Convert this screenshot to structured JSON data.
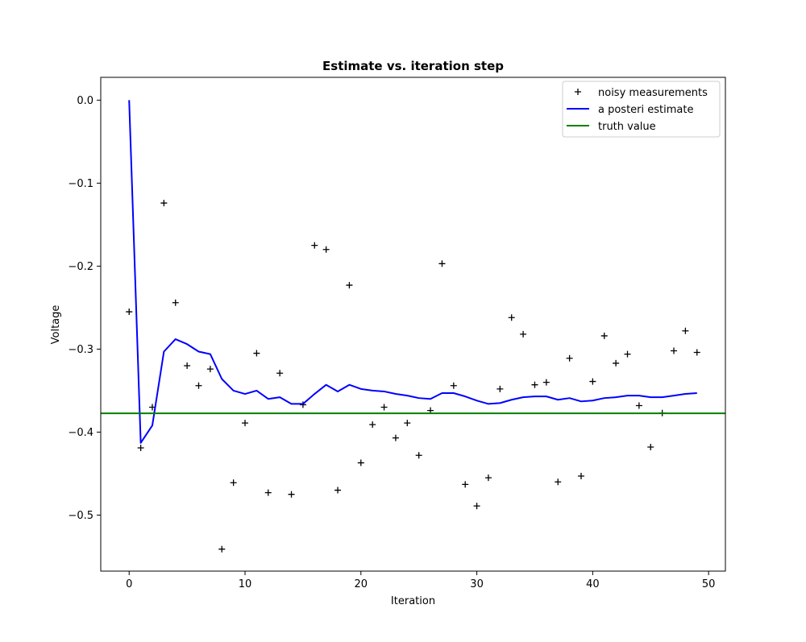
{
  "chart_data": {
    "type": "line",
    "title": "Estimate vs. iteration step",
    "xlabel": "Iteration",
    "ylabel": "Voltage",
    "xlim": [
      -2.45,
      51.45
    ],
    "ylim": [
      -0.5675,
      0.0275
    ],
    "xticks": [
      0,
      10,
      20,
      30,
      40,
      50
    ],
    "yticks": [
      0.0,
      -0.1,
      -0.2,
      -0.3,
      -0.4,
      -0.5
    ],
    "xtick_labels": [
      "0",
      "10",
      "20",
      "30",
      "40",
      "50"
    ],
    "ytick_labels": [
      "0.0",
      "−0.1",
      "−0.2",
      "−0.3",
      "−0.4",
      "−0.5"
    ],
    "grid": false,
    "legend_position": "top-right",
    "series": [
      {
        "name": "noisy measurements",
        "kind": "markers",
        "marker": "+",
        "color": "#000000",
        "x": [
          0,
          1,
          2,
          3,
          4,
          5,
          6,
          7,
          8,
          9,
          10,
          11,
          12,
          13,
          14,
          15,
          16,
          17,
          18,
          19,
          20,
          21,
          22,
          23,
          24,
          25,
          26,
          27,
          28,
          29,
          30,
          31,
          32,
          33,
          34,
          35,
          36,
          37,
          38,
          39,
          40,
          41,
          42,
          43,
          44,
          45,
          46,
          47,
          48,
          49
        ],
        "y": [
          -0.255,
          -0.419,
          -0.37,
          -0.124,
          -0.244,
          -0.32,
          -0.344,
          -0.324,
          -0.541,
          -0.461,
          -0.389,
          -0.305,
          -0.473,
          -0.329,
          -0.475,
          -0.367,
          -0.175,
          -0.18,
          -0.47,
          -0.223,
          -0.437,
          -0.391,
          -0.37,
          -0.407,
          -0.389,
          -0.428,
          -0.374,
          -0.197,
          -0.344,
          -0.463,
          -0.489,
          -0.455,
          -0.348,
          -0.262,
          -0.282,
          -0.343,
          -0.34,
          -0.46,
          -0.311,
          -0.453,
          -0.339,
          -0.284,
          -0.317,
          -0.306,
          -0.368,
          -0.418,
          -0.377,
          -0.302,
          -0.278,
          -0.304
        ]
      },
      {
        "name": "a posteri estimate",
        "kind": "line",
        "color": "#0000ff",
        "x": [
          0,
          1,
          2,
          3,
          4,
          5,
          6,
          7,
          8,
          9,
          10,
          11,
          12,
          13,
          14,
          15,
          16,
          17,
          18,
          19,
          20,
          21,
          22,
          23,
          24,
          25,
          26,
          27,
          28,
          29,
          30,
          31,
          32,
          33,
          34,
          35,
          36,
          37,
          38,
          39,
          40,
          41,
          42,
          43,
          44,
          45,
          46,
          47,
          48,
          49
        ],
        "y": [
          0.0,
          -0.413,
          -0.392,
          -0.303,
          -0.288,
          -0.294,
          -0.303,
          -0.306,
          -0.336,
          -0.35,
          -0.354,
          -0.35,
          -0.36,
          -0.358,
          -0.366,
          -0.366,
          -0.354,
          -0.343,
          -0.351,
          -0.343,
          -0.348,
          -0.35,
          -0.351,
          -0.354,
          -0.356,
          -0.359,
          -0.36,
          -0.353,
          -0.353,
          -0.357,
          -0.362,
          -0.366,
          -0.365,
          -0.361,
          -0.358,
          -0.357,
          -0.357,
          -0.361,
          -0.359,
          -0.363,
          -0.362,
          -0.359,
          -0.358,
          -0.356,
          -0.356,
          -0.358,
          -0.358,
          -0.356,
          -0.354,
          -0.353
        ]
      },
      {
        "name": "truth value",
        "kind": "hline",
        "color": "#008000",
        "y": -0.3774
      }
    ]
  }
}
